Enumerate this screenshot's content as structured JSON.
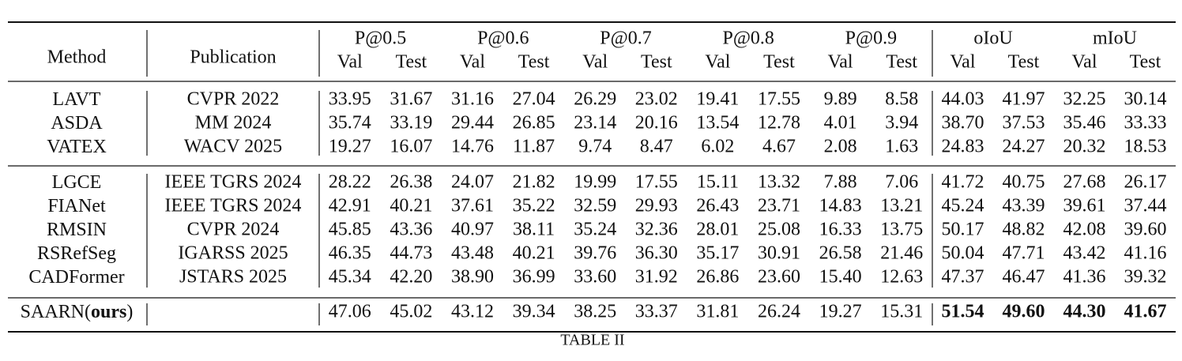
{
  "table": {
    "header": {
      "columns": [
        "Method",
        "Publication"
      ],
      "groups": [
        "P@0.5",
        "P@0.6",
        "P@0.7",
        "P@0.8",
        "P@0.9",
        "oIoU",
        "mIoU"
      ],
      "sub": [
        "Val",
        "Test",
        "Val",
        "Test",
        "Val",
        "Test",
        "Val",
        "Test",
        "Val",
        "Test",
        "Val",
        "Test",
        "Val",
        "Test"
      ]
    },
    "blocks": [
      [
        {
          "method": [
            "LAVT"
          ],
          "publication": "CVPR 2022",
          "values": [
            "33.95",
            "31.67",
            "31.16",
            "27.04",
            "26.29",
            "23.02",
            "19.41",
            "17.55",
            "9.89",
            "8.58",
            "44.03",
            "41.97",
            "32.25",
            "30.14"
          ]
        },
        {
          "method": [
            "ASDA"
          ],
          "publication": "MM 2024",
          "values": [
            "35.74",
            "33.19",
            "29.44",
            "26.85",
            "23.14",
            "20.16",
            "13.54",
            "12.78",
            "4.01",
            "3.94",
            "38.70",
            "37.53",
            "35.46",
            "33.33"
          ]
        },
        {
          "method": [
            "VATEX"
          ],
          "publication": "WACV 2025",
          "values": [
            "19.27",
            "16.07",
            "14.76",
            "11.87",
            "9.74",
            "8.47",
            "6.02",
            "4.67",
            "2.08",
            "1.63",
            "24.83",
            "24.27",
            "20.32",
            "18.53"
          ]
        }
      ],
      [
        {
          "method": [
            "LGCE"
          ],
          "publication": "IEEE TGRS 2024",
          "values": [
            "28.22",
            "26.38",
            "24.07",
            "21.82",
            "19.99",
            "17.55",
            "15.11",
            "13.32",
            "7.88",
            "7.06",
            "41.72",
            "40.75",
            "27.68",
            "26.17"
          ]
        },
        {
          "method": [
            "FIANet"
          ],
          "publication": "IEEE TGRS 2024",
          "values": [
            "42.91",
            "40.21",
            "37.61",
            "35.22",
            "32.59",
            "29.93",
            "26.43",
            "23.71",
            "14.83",
            "13.21",
            "45.24",
            "43.39",
            "39.61",
            "37.44"
          ]
        },
        {
          "method": [
            "RMSIN"
          ],
          "publication": "CVPR 2024",
          "values": [
            "45.85",
            "43.36",
            "40.97",
            "38.11",
            "35.24",
            "32.36",
            "28.01",
            "25.08",
            "16.33",
            "13.75",
            "50.17",
            "48.82",
            "42.08",
            "39.60"
          ]
        },
        {
          "method": [
            "RSRefSeg"
          ],
          "publication": "IGARSS 2025",
          "values": [
            "46.35",
            "44.73",
            "43.48",
            "40.21",
            "39.76",
            "36.30",
            "35.17",
            "30.91",
            "26.58",
            "21.46",
            "50.04",
            "47.71",
            "43.42",
            "41.16"
          ]
        },
        {
          "method": [
            "CADFormer"
          ],
          "publication": "JSTARS 2025",
          "values": [
            "45.34",
            "42.20",
            "38.90",
            "36.99",
            "33.60",
            "31.92",
            "26.86",
            "23.60",
            "15.40",
            "12.63",
            "47.37",
            "46.47",
            "41.36",
            "39.32"
          ]
        }
      ],
      [
        {
          "method": [
            "SAARN(",
            "ours",
            ")"
          ],
          "values": [
            "47.06",
            "45.02",
            "43.12",
            "39.34",
            "38.25",
            "33.37",
            "31.81",
            "26.24",
            "19.27",
            "15.31",
            "51.54",
            "49.60",
            "44.30",
            "41.67"
          ]
        }
      ]
    ],
    "caption": "TABLE II"
  }
}
